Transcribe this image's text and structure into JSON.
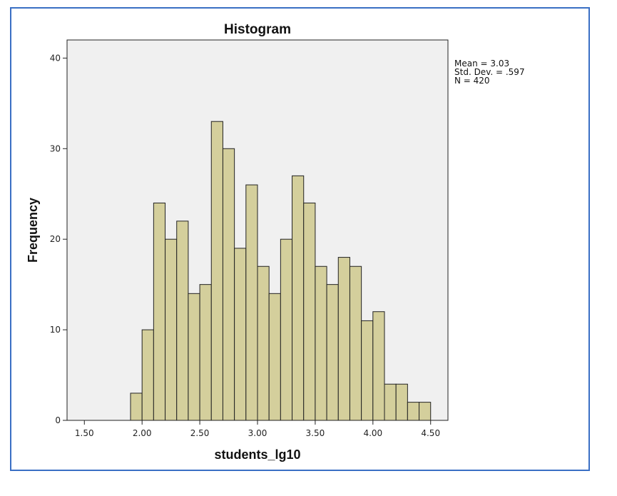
{
  "chart_data": {
    "type": "bar",
    "title": "Histogram",
    "xlabel": "students_lg10",
    "ylabel": "Frequency",
    "xlim": [
      1.35,
      4.65
    ],
    "ylim": [
      0,
      42
    ],
    "x_ticks": [
      1.5,
      2.0,
      2.5,
      3.0,
      3.5,
      4.0,
      4.5
    ],
    "x_tick_labels": [
      "1.50",
      "2.00",
      "2.50",
      "3.00",
      "3.50",
      "4.00",
      "4.50"
    ],
    "y_ticks": [
      0,
      10,
      20,
      30,
      40
    ],
    "y_tick_labels": [
      "0",
      "10",
      "20",
      "30",
      "40"
    ],
    "bin_start": 1.9,
    "bin_width": 0.1,
    "values": [
      3,
      10,
      24,
      20,
      22,
      14,
      15,
      33,
      30,
      19,
      26,
      17,
      14,
      20,
      27,
      24,
      17,
      15,
      18,
      17,
      11,
      12,
      4,
      4,
      2,
      2
    ],
    "grid": false,
    "legend": "none",
    "stats": [
      "Mean = 3.03",
      "Std. Dev. = .597",
      "N = 420"
    ],
    "colors": {
      "bar_fill": "#d4cf9c",
      "bar_stroke": "#222222",
      "plot_bg": "#f0f0f0",
      "frame": "#3a6fc4"
    }
  }
}
